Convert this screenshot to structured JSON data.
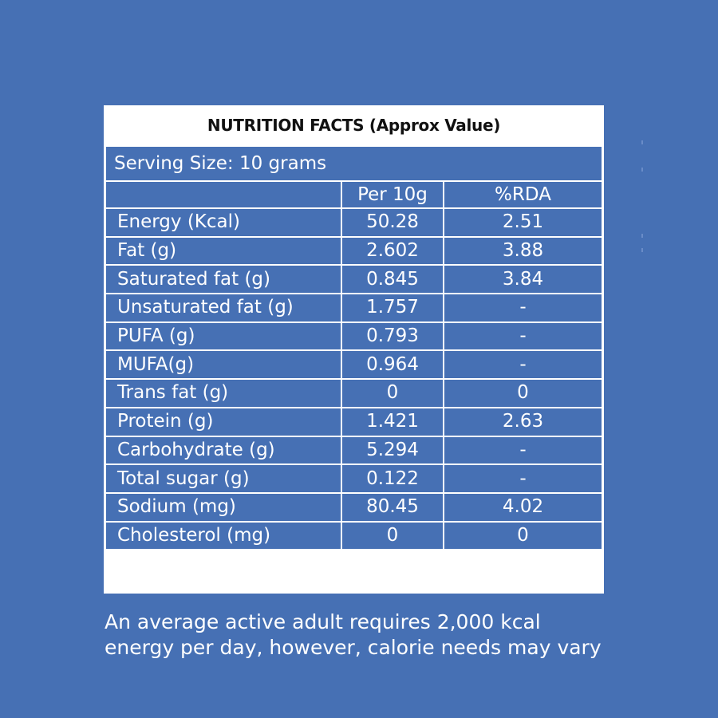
{
  "title": "NUTRITION FACTS (Approx Value)",
  "serving_size": "Serving Size: 10 grams",
  "columns": {
    "label": "",
    "per_serving": "Per 10g",
    "rda": "%RDA"
  },
  "rows": [
    {
      "label": "Energy (Kcal)",
      "per": "50.28",
      "rda": "2.51"
    },
    {
      "label": "Fat (g)",
      "per": "2.602",
      "rda": "3.88"
    },
    {
      "label": "Saturated fat (g)",
      "per": "0.845",
      "rda": "3.84"
    },
    {
      "label": "Unsaturated fat (g)",
      "per": "1.757",
      "rda": "-"
    },
    {
      "label": "PUFA (g)",
      "per": "0.793",
      "rda": "-"
    },
    {
      "label": "MUFA(g)",
      "per": "0.964",
      "rda": "-"
    },
    {
      "label": "Trans fat  (g)",
      "per": "0",
      "rda": "0"
    },
    {
      "label": "Protein (g)",
      "per": "1.421",
      "rda": "2.63"
    },
    {
      "label": "Carbohydrate (g)",
      "per": "5.294",
      "rda": "-"
    },
    {
      "label": "Total sugar (g)",
      "per": "0.122",
      "rda": "-"
    },
    {
      "label": "Sodium (mg)",
      "per": "80.45",
      "rda": "4.02"
    },
    {
      "label": "Cholesterol (mg)",
      "per": "0",
      "rda": "0"
    }
  ],
  "footnote": {
    "line1": "An average active adult requires 2,000 kcal",
    "line2": "energy per day, however, calorie needs may vary"
  },
  "colors": {
    "background": "#4670b4",
    "panel": "#ffffff",
    "title_text": "#111111"
  }
}
